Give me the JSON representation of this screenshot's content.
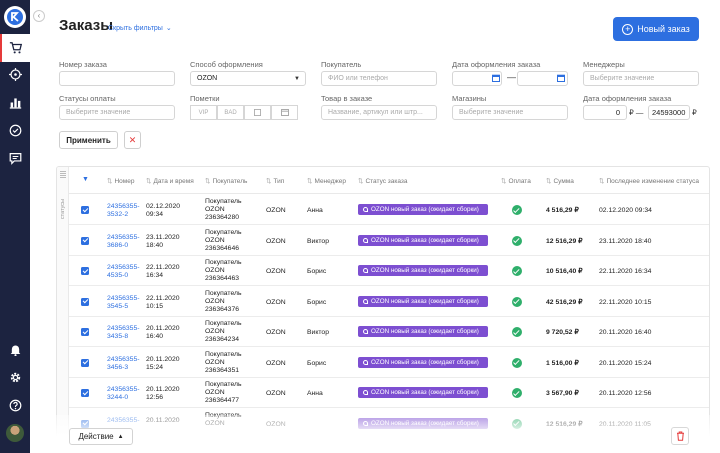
{
  "header": {
    "title": "Заказы",
    "hide_filters": "Скрыть фильтры",
    "new_order": "Новый заказ"
  },
  "filters": {
    "order_number": {
      "label": "Номер заказа",
      "value": ""
    },
    "checkout_method": {
      "label": "Способ оформления",
      "value": "OZON"
    },
    "buyer": {
      "label": "Покупатель",
      "placeholder": "ФИО или телефон"
    },
    "order_date": {
      "label": "Дата оформления заказа",
      "separator": "—"
    },
    "managers": {
      "label": "Менеджеры",
      "placeholder": "Выберите значение"
    },
    "payment_status": {
      "label": "Статусы оплаты",
      "placeholder": "Выберите значение"
    },
    "marks": {
      "label": "Пометки",
      "items": [
        "VIP",
        "BAD",
        "",
        ""
      ]
    },
    "product": {
      "label": "Товар в заказе",
      "placeholder": "Название, артикул или штр..."
    },
    "stores": {
      "label": "Магазины",
      "placeholder": "Выберите значение"
    },
    "order_date_range": {
      "label": "Дата оформления заказа",
      "from": "0",
      "currency_from": "₽ —",
      "to": "24593000",
      "currency_to": "₽"
    },
    "apply": "Применить",
    "clear": "✕"
  },
  "table": {
    "side_label": "статусы",
    "columns": {
      "number": "Номер",
      "datetime": "Дата и время",
      "buyer": "Покупатель",
      "type": "Тип",
      "manager": "Менеджер",
      "status": "Статус заказа",
      "payment": "Оплата",
      "sum": "Сумма",
      "changed": "Последнее изменение статуса"
    },
    "rows": [
      {
        "num1": "24356355-",
        "num2": "3532-2",
        "date": "02.12.2020",
        "time": "09:34",
        "b1": "Покупатель",
        "b2": "OZON",
        "b3": "236364280",
        "type": "OZON",
        "manager": "Анна",
        "status": "OZON новый заказ (ожидает сборки)",
        "sum": "4 516,29 ₽",
        "changed": "02.12.2020 09:34"
      },
      {
        "num1": "24356355-",
        "num2": "3686-0",
        "date": "23.11.2020",
        "time": "18:40",
        "b1": "Покупатель",
        "b2": "OZON",
        "b3": "236364646",
        "type": "OZON",
        "manager": "Виктор",
        "status": "OZON новый заказ (ожидает сборки)",
        "sum": "12 516,29 ₽",
        "changed": "23.11.2020 18:40"
      },
      {
        "num1": "24356355-",
        "num2": "4535-0",
        "date": "22.11.2020",
        "time": "16:34",
        "b1": "Покупатель",
        "b2": "OZON",
        "b3": "236364463",
        "type": "OZON",
        "manager": "Борис",
        "status": "OZON новый заказ (ожидает сборки)",
        "sum": "10 516,40 ₽",
        "changed": "22.11.2020 16:34"
      },
      {
        "num1": "24356355-",
        "num2": "3545-5",
        "date": "22.11.2020",
        "time": "10:15",
        "b1": "Покупатель",
        "b2": "OZON",
        "b3": "236364376",
        "type": "OZON",
        "manager": "Борис",
        "status": "OZON новый заказ (ожидает сборки)",
        "sum": "42 516,29 ₽",
        "changed": "22.11.2020 10:15"
      },
      {
        "num1": "24356355-",
        "num2": "3435-8",
        "date": "20.11.2020",
        "time": "16:40",
        "b1": "Покупатель",
        "b2": "OZON",
        "b3": "236364234",
        "type": "OZON",
        "manager": "Виктор",
        "status": "OZON новый заказ (ожидает сборки)",
        "sum": "9 720,52 ₽",
        "changed": "20.11.2020 16:40"
      },
      {
        "num1": "24356355-",
        "num2": "3456-3",
        "date": "20.11.2020",
        "time": "15:24",
        "b1": "Покупатель",
        "b2": "OZON",
        "b3": "236364351",
        "type": "OZON",
        "manager": "Борис",
        "status": "OZON новый заказ (ожидает сборки)",
        "sum": "1 516,00 ₽",
        "changed": "20.11.2020 15:24"
      },
      {
        "num1": "24356355-",
        "num2": "3244-0",
        "date": "20.11.2020",
        "time": "12:56",
        "b1": "Покупатель",
        "b2": "OZON",
        "b3": "236364477",
        "type": "OZON",
        "manager": "Анна",
        "status": "OZON новый заказ (ожидает сборки)",
        "sum": "3 567,90 ₽",
        "changed": "20.11.2020 12:56"
      },
      {
        "num1": "24356355-",
        "num2": "",
        "date": "20.11.2020",
        "time": "",
        "b1": "Покупатель",
        "b2": "OZON",
        "b3": "",
        "type": "OZON",
        "manager": "",
        "status": "OZON новый заказ (ожидает сборки)",
        "sum": "12 516,29 ₽",
        "changed": "20.11.2020 11:05"
      }
    ]
  },
  "footer": {
    "action": "Действие"
  },
  "colors": {
    "accent": "#2d6fe0",
    "sidebar": "#1c2340",
    "status_badge": "#7d4fd1",
    "paid": "#2faf6b",
    "danger": "#e53a3a"
  }
}
